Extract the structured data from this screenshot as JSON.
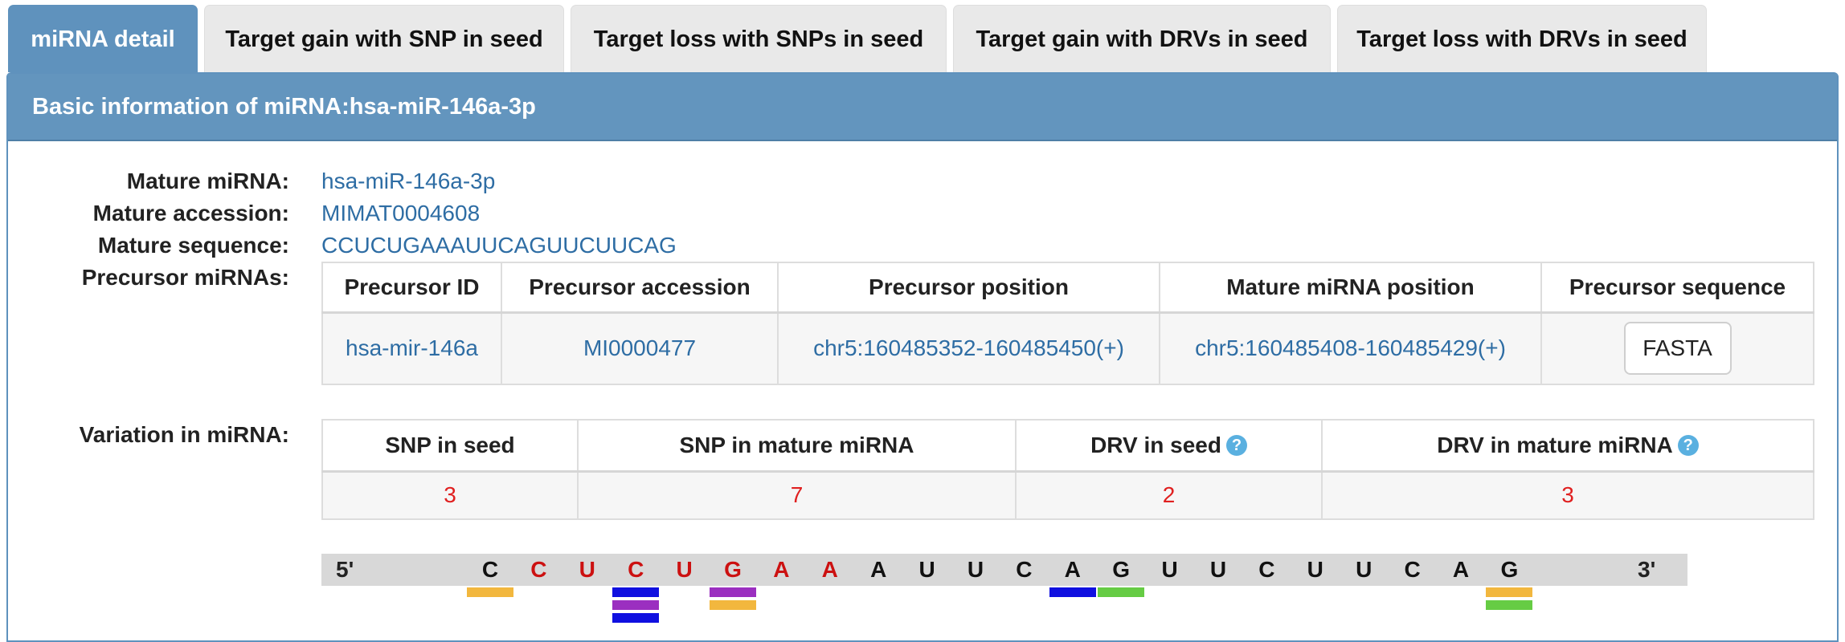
{
  "tabs": [
    {
      "label": "miRNA detail",
      "active": true
    },
    {
      "label": "Target gain with SNP in seed"
    },
    {
      "label": "Target loss with SNPs in seed"
    },
    {
      "label": "Target gain with DRVs in seed"
    },
    {
      "label": "Target loss with DRVs in seed"
    }
  ],
  "panel": {
    "heading": "Basic information of miRNA:hsa-miR-146a-3p"
  },
  "info": {
    "mature_label": "Mature miRNA:",
    "mature_value": "hsa-miR-146a-3p",
    "accession_label": "Mature accession:",
    "accession_value": "MIMAT0004608",
    "sequence_label": "Mature sequence:",
    "sequence_value": "CCUCUGAAAUUCAGUUCUUCAG",
    "precursor_label": "Precursor miRNAs:",
    "variation_label": "Variation in miRNA:"
  },
  "precursor_table": {
    "headers": [
      "Precursor ID",
      "Precursor accession",
      "Precursor position",
      "Mature miRNA position",
      "Precursor sequence"
    ],
    "row": {
      "id": "hsa-mir-146a",
      "accession": "MI0000477",
      "position": "chr5:160485352-160485450(+)",
      "mature_position": "chr5:160485408-160485429(+)",
      "button": "FASTA"
    }
  },
  "variation_table": {
    "headers": [
      "SNP in seed",
      "SNP in mature miRNA",
      "DRV in seed",
      "DRV in mature miRNA"
    ],
    "values": [
      "3",
      "7",
      "2",
      "3"
    ]
  },
  "sequence": {
    "five_prime": "5'",
    "three_prime": "3'",
    "nucleotides": [
      "C",
      "C",
      "U",
      "C",
      "U",
      "G",
      "A",
      "A",
      "A",
      "U",
      "U",
      "C",
      "A",
      "G",
      "U",
      "U",
      "C",
      "U",
      "U",
      "C",
      "A",
      "G"
    ],
    "seed_color": "#cc1111",
    "normal_color": "#111111",
    "seed_range": [
      1,
      7
    ],
    "markers": [
      {
        "pos": 0,
        "colors": [
          "#f2b73e"
        ]
      },
      {
        "pos": 3,
        "colors": [
          "#1010e0",
          "#9b2fc0",
          "#1010e0"
        ]
      },
      {
        "pos": 5,
        "colors": [
          "#9b2fc0",
          "#f2b73e"
        ]
      },
      {
        "pos": 12,
        "colors": [
          "#1010e0"
        ]
      },
      {
        "pos": 13,
        "colors": [
          "#66cc44"
        ]
      },
      {
        "pos": 21,
        "colors": [
          "#f2b73e",
          "#66cc44"
        ]
      }
    ]
  }
}
